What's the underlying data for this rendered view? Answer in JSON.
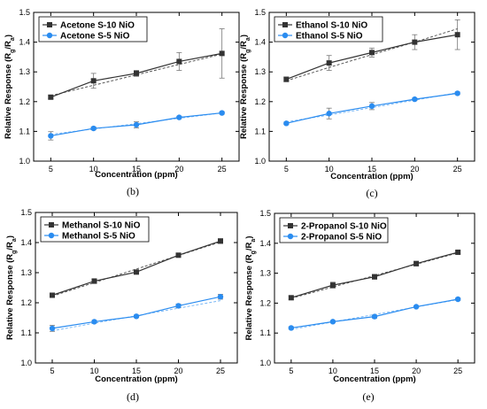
{
  "chart_data": [
    {
      "type": "line",
      "panel_label": "(b)",
      "xlabel": "Concentration (ppm)",
      "ylabel": "Relative Response (Rg/Ra)",
      "ylabel_main": "Relative Response (R",
      "ylabel_sub1": "g",
      "ylabel_mid": "/R",
      "ylabel_sub2": "a",
      "ylabel_end": ")",
      "x": [
        5,
        10,
        15,
        20,
        25
      ],
      "xticks": [
        "5",
        "10",
        "15",
        "20",
        "25"
      ],
      "yticks": [
        "1.0",
        "1.1",
        "1.2",
        "1.3",
        "1.4",
        "1.5"
      ],
      "xlim": [
        3,
        27
      ],
      "ylim": [
        1.0,
        1.5
      ],
      "legend_position": "top-left",
      "series": [
        {
          "name": "Acetone S-10 NiO",
          "values": [
            1.215,
            1.27,
            1.295,
            1.335,
            1.362
          ],
          "errors": [
            0.006,
            0.025,
            0.01,
            0.03,
            0.083
          ],
          "fit": [
            1.22,
            1.255,
            1.29,
            1.325,
            1.36
          ],
          "color": "#333333",
          "fit_color": "#555555",
          "marker": "square"
        },
        {
          "name": "Acetone S-5 NiO",
          "values": [
            1.085,
            1.11,
            1.122,
            1.147,
            1.162
          ],
          "errors": [
            0.014,
            0.005,
            0.01,
            0.004,
            0.004
          ],
          "fit": [
            1.09,
            1.108,
            1.126,
            1.144,
            1.162
          ],
          "color": "#2a8cf0",
          "fit_color": "#7bb8f5",
          "marker": "circle"
        }
      ]
    },
    {
      "type": "line",
      "panel_label": "(c)",
      "xlabel": "Concentration (ppm)",
      "ylabel": "Relative Response (Rg/Ra)",
      "ylabel_main": "Relative Response (R",
      "ylabel_sub1": "g",
      "ylabel_mid": "/R",
      "ylabel_sub2": "a",
      "ylabel_end": ")",
      "x": [
        5,
        10,
        15,
        20,
        25
      ],
      "xticks": [
        "5",
        "10",
        "15",
        "20",
        "25"
      ],
      "yticks": [
        "1.0",
        "1.1",
        "1.2",
        "1.3",
        "1.4",
        "1.5"
      ],
      "xlim": [
        3,
        27
      ],
      "ylim": [
        1.0,
        1.5
      ],
      "legend_position": "top-left",
      "series": [
        {
          "name": "Ethanol S-10 NiO",
          "values": [
            1.275,
            1.33,
            1.365,
            1.4,
            1.425
          ],
          "errors": [
            0.008,
            0.025,
            0.015,
            0.025,
            0.05
          ],
          "fit": [
            1.27,
            1.315,
            1.358,
            1.4,
            1.445
          ],
          "color": "#333333",
          "fit_color": "#555555",
          "marker": "square"
        },
        {
          "name": "Ethanol S-5 NiO",
          "values": [
            1.127,
            1.16,
            1.185,
            1.208,
            1.228
          ],
          "errors": [
            0.004,
            0.018,
            0.012,
            0.004,
            0.004
          ],
          "fit": [
            1.132,
            1.155,
            1.18,
            1.205,
            1.23
          ],
          "color": "#2a8cf0",
          "fit_color": "#7bb8f5",
          "marker": "circle"
        }
      ]
    },
    {
      "type": "line",
      "panel_label": "(d)",
      "xlabel": "Concentration (ppm)",
      "ylabel": "Relative Response (Rg/Ra)",
      "ylabel_main": "Relative Response (R",
      "ylabel_sub1": "g",
      "ylabel_mid": "/R",
      "ylabel_sub2": "a",
      "ylabel_end": ")",
      "x": [
        5,
        10,
        15,
        20,
        25
      ],
      "xticks": [
        "5",
        "10",
        "15",
        "20",
        "25"
      ],
      "yticks": [
        "1.0",
        "1.1",
        "1.2",
        "1.3",
        "1.4",
        "1.5"
      ],
      "xlim": [
        3,
        27
      ],
      "ylim": [
        1.0,
        1.5
      ],
      "legend_position": "top-left",
      "series": [
        {
          "name": "Methanol  S-10 NiO",
          "values": [
            1.225,
            1.272,
            1.302,
            1.358,
            1.405
          ],
          "errors": [
            0.006,
            0.008,
            0.006,
            0.005,
            0.008
          ],
          "fit": [
            1.222,
            1.267,
            1.312,
            1.357,
            1.402
          ],
          "color": "#333333",
          "fit_color": "#555555",
          "marker": "square"
        },
        {
          "name": "Methanol S-5 NiO",
          "values": [
            1.115,
            1.137,
            1.155,
            1.19,
            1.22
          ],
          "errors": [
            0.01,
            0.004,
            0.004,
            0.006,
            0.008
          ],
          "fit": [
            1.107,
            1.132,
            1.157,
            1.182,
            1.207
          ],
          "color": "#2a8cf0",
          "fit_color": "#7bb8f5",
          "marker": "circle"
        }
      ]
    },
    {
      "type": "line",
      "panel_label": "(e)",
      "xlabel": "Concentration (ppm)",
      "ylabel": "Relative Response (Rg/Ra)",
      "ylabel_main": "Relative Response (R",
      "ylabel_sub1": "g",
      "ylabel_mid": "/R",
      "ylabel_sub2": "a",
      "ylabel_end": ")",
      "x": [
        5,
        10,
        15,
        20,
        25
      ],
      "xticks": [
        "5",
        "10",
        "15",
        "20",
        "25"
      ],
      "yticks": [
        "1.0",
        "1.1",
        "1.2",
        "1.3",
        "1.4",
        "1.5"
      ],
      "xlim": [
        3,
        27
      ],
      "ylim": [
        1.0,
        1.5
      ],
      "legend_position": "top-left",
      "series": [
        {
          "name": "2-Propanol S-10 NiO",
          "values": [
            1.218,
            1.26,
            1.288,
            1.332,
            1.37
          ],
          "errors": [
            0.006,
            0.01,
            0.008,
            0.008,
            0.004
          ],
          "fit": [
            1.216,
            1.254,
            1.292,
            1.33,
            1.368
          ],
          "color": "#333333",
          "fit_color": "#555555",
          "marker": "square"
        },
        {
          "name": "2-Propanol S-5 NiO",
          "values": [
            1.117,
            1.138,
            1.155,
            1.188,
            1.213
          ],
          "errors": [
            0.004,
            0.003,
            0.005,
            0.003,
            0.004
          ],
          "fit": [
            1.112,
            1.137,
            1.162,
            1.187,
            1.212
          ],
          "color": "#2a8cf0",
          "fit_color": "#7bb8f5",
          "marker": "circle"
        }
      ]
    }
  ]
}
